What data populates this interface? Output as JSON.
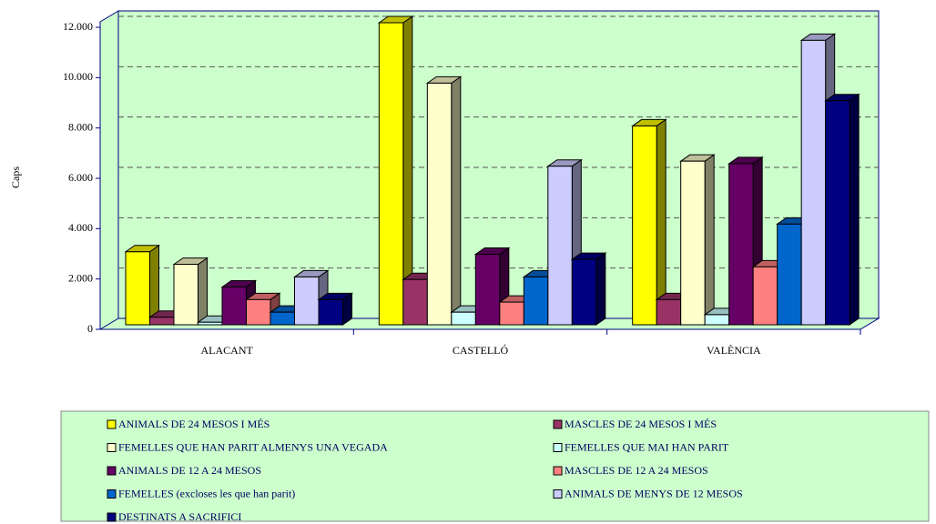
{
  "chart_data": {
    "type": "bar3d",
    "y_label": "Caps",
    "categories": [
      "ALACANT",
      "CASTELLÓ",
      "VALÈNCIA"
    ],
    "ylim": [
      0,
      12000
    ],
    "yticks": [
      0,
      {
        "value": 2000,
        "label": "2.000"
      },
      {
        "value": 4000,
        "label": "4.000"
      },
      {
        "value": 6000,
        "label": "6.000"
      },
      {
        "value": 8000,
        "label": "8.000"
      },
      {
        "value": 10000,
        "label": "10.000"
      },
      {
        "value": 12000,
        "label": "12.000"
      }
    ],
    "grid": true,
    "series": [
      {
        "name": "ANIMALS DE 24 MESOS I MÉS",
        "color": "#ffff00",
        "values": [
          2900,
          12000,
          7900
        ]
      },
      {
        "name": "MASCLES DE 24 MESOS I MÉS",
        "color": "#993366",
        "values": [
          300,
          1800,
          1000
        ]
      },
      {
        "name": "FEMELLES QUE HAN PARIT ALMENYS UNA VEGADA",
        "color": "#ffffcc",
        "values": [
          2400,
          9600,
          6500
        ]
      },
      {
        "name": "FEMELLES QUE MAI HAN PARIT",
        "color": "#ccffff",
        "values": [
          100,
          500,
          400
        ]
      },
      {
        "name": "ANIMALS DE 12 A 24 MESOS",
        "color": "#660066",
        "values": [
          1500,
          2800,
          6400
        ]
      },
      {
        "name": "MASCLES DE 12 A 24 MESOS",
        "color": "#ff8080",
        "values": [
          1000,
          900,
          2300
        ]
      },
      {
        "name": "FEMELLES (excloses les que han parit)",
        "color": "#0066cc",
        "values": [
          500,
          1900,
          4000
        ]
      },
      {
        "name": "ANIMALS DE MENYS DE 12 MESOS",
        "color": "#ccccff",
        "values": [
          1900,
          6300,
          11300
        ]
      },
      {
        "name": "DESTINATS A SACRIFICI",
        "color": "#000080",
        "values": [
          1000,
          2600,
          8900
        ]
      }
    ]
  }
}
